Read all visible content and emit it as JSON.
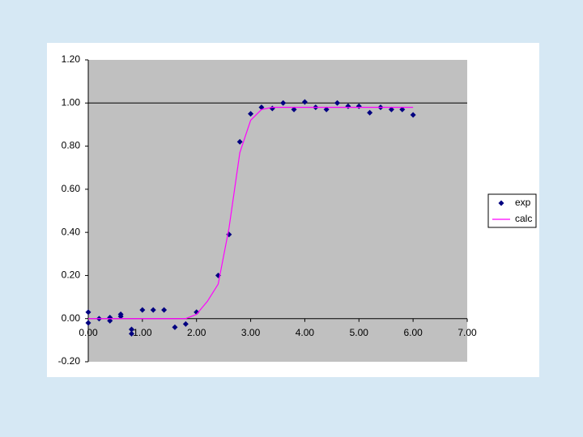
{
  "chart_data": {
    "type": "scatter",
    "xlim": [
      0,
      7
    ],
    "xticks": [
      {
        "value": 0,
        "label": "0.00"
      },
      {
        "value": 1,
        "label": "1.00"
      },
      {
        "value": 2,
        "label": "2.00"
      },
      {
        "value": 3,
        "label": "3.00"
      },
      {
        "value": 4,
        "label": "4.00"
      },
      {
        "value": 5,
        "label": "5.00"
      },
      {
        "value": 6,
        "label": "6.00"
      },
      {
        "value": 7,
        "label": "7.00"
      }
    ],
    "ylim": [
      -0.2,
      1.2
    ],
    "yticks": [
      {
        "value": -0.2,
        "label": "-0.20"
      },
      {
        "value": 0,
        "label": "0.00"
      },
      {
        "value": 0.2,
        "label": "0.20"
      },
      {
        "value": 0.4,
        "label": "0.40"
      },
      {
        "value": 0.6,
        "label": "0.60"
      },
      {
        "value": 0.8,
        "label": "0.80"
      },
      {
        "value": 1,
        "label": "1.00"
      },
      {
        "value": 1.2,
        "label": "1.20"
      }
    ],
    "reference_line": {
      "value": 1,
      "color": "#000000"
    },
    "legend": "right",
    "series": [
      {
        "name": "exp",
        "type": "scatter",
        "color": "#000080",
        "x": [
          0,
          0,
          0.2,
          0.4,
          0.4,
          0.6,
          0.6,
          0.8,
          0.8,
          1.0,
          1.2,
          1.4,
          1.6,
          1.8,
          2.0,
          2.4,
          2.6,
          2.8,
          3.0,
          3.2,
          3.4,
          3.6,
          3.8,
          4.0,
          4.2,
          4.4,
          4.6,
          4.8,
          5.0,
          5.2,
          5.4,
          5.6,
          5.8,
          6.0
        ],
        "values": [
          0.03,
          -0.02,
          0.0,
          0.005,
          -0.01,
          0.02,
          0.01,
          -0.05,
          -0.07,
          0.04,
          0.04,
          0.04,
          -0.04,
          -0.025,
          0.03,
          0.2,
          0.39,
          0.82,
          0.95,
          0.98,
          0.975,
          1.0,
          0.97,
          1.005,
          0.98,
          0.97,
          1.0,
          0.985,
          0.985,
          0.955,
          0.98,
          0.97,
          0.97,
          0.945
        ]
      },
      {
        "name": "calc",
        "type": "line",
        "color": "#ff00ff",
        "x": [
          0,
          0.2,
          0.4,
          0.6,
          0.8,
          1.0,
          1.2,
          1.4,
          1.6,
          1.8,
          2.0,
          2.2,
          2.4,
          2.6,
          2.8,
          3.0,
          3.2,
          3.4,
          3.6,
          3.8,
          4.0,
          4.2,
          4.4,
          4.6,
          4.8,
          5.0,
          5.2,
          5.4,
          5.6,
          5.8,
          6.0
        ],
        "values": [
          0,
          0,
          0,
          0,
          0,
          0,
          0,
          0,
          0,
          0,
          0.02,
          0.08,
          0.16,
          0.42,
          0.77,
          0.92,
          0.97,
          0.98,
          0.98,
          0.98,
          0.98,
          0.98,
          0.98,
          0.98,
          0.98,
          0.98,
          0.98,
          0.98,
          0.98,
          0.98,
          0.98
        ]
      }
    ]
  }
}
